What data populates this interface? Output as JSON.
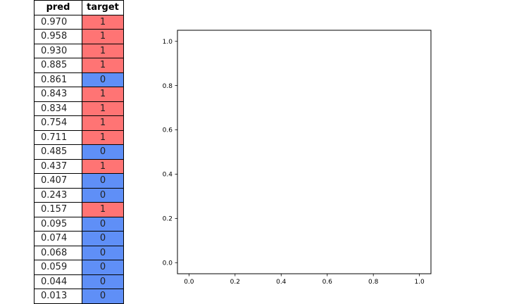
{
  "table": {
    "headers": [
      "pred",
      "target"
    ],
    "rows": [
      {
        "pred": "0.970",
        "target": "1"
      },
      {
        "pred": "0.958",
        "target": "1"
      },
      {
        "pred": "0.930",
        "target": "1"
      },
      {
        "pred": "0.885",
        "target": "1"
      },
      {
        "pred": "0.861",
        "target": "0"
      },
      {
        "pred": "0.843",
        "target": "1"
      },
      {
        "pred": "0.834",
        "target": "1"
      },
      {
        "pred": "0.754",
        "target": "1"
      },
      {
        "pred": "0.711",
        "target": "1"
      },
      {
        "pred": "0.485",
        "target": "0"
      },
      {
        "pred": "0.437",
        "target": "1"
      },
      {
        "pred": "0.407",
        "target": "0"
      },
      {
        "pred": "0.243",
        "target": "0"
      },
      {
        "pred": "0.157",
        "target": "1"
      },
      {
        "pred": "0.095",
        "target": "0"
      },
      {
        "pred": "0.074",
        "target": "0"
      },
      {
        "pred": "0.068",
        "target": "0"
      },
      {
        "pred": "0.059",
        "target": "0"
      },
      {
        "pred": "0.044",
        "target": "0"
      },
      {
        "pred": "0.013",
        "target": "0"
      }
    ]
  },
  "colors": {
    "positive": "#ff7474",
    "negative": "#5f8ff7"
  },
  "chart_data": [
    {
      "type": "table",
      "columns": [
        "pred",
        "target"
      ],
      "rows": [
        [
          0.97,
          1
        ],
        [
          0.958,
          1
        ],
        [
          0.93,
          1
        ],
        [
          0.885,
          1
        ],
        [
          0.861,
          0
        ],
        [
          0.843,
          1
        ],
        [
          0.834,
          1
        ],
        [
          0.754,
          1
        ],
        [
          0.711,
          1
        ],
        [
          0.485,
          0
        ],
        [
          0.437,
          1
        ],
        [
          0.407,
          0
        ],
        [
          0.243,
          0
        ],
        [
          0.157,
          1
        ],
        [
          0.095,
          0
        ],
        [
          0.074,
          0
        ],
        [
          0.068,
          0
        ],
        [
          0.059,
          0
        ],
        [
          0.044,
          0
        ],
        [
          0.013,
          0
        ]
      ]
    },
    {
      "type": "line",
      "series": [],
      "title": "",
      "xlabel": "",
      "ylabel": "",
      "xlim": [
        -0.05,
        1.05
      ],
      "ylim": [
        -0.05,
        1.05
      ],
      "xticks": [
        "0.0",
        "0.2",
        "0.4",
        "0.6",
        "0.8",
        "1.0"
      ],
      "yticks": [
        "0.0",
        "0.2",
        "0.4",
        "0.6",
        "0.8",
        "1.0"
      ],
      "grid": false
    }
  ]
}
